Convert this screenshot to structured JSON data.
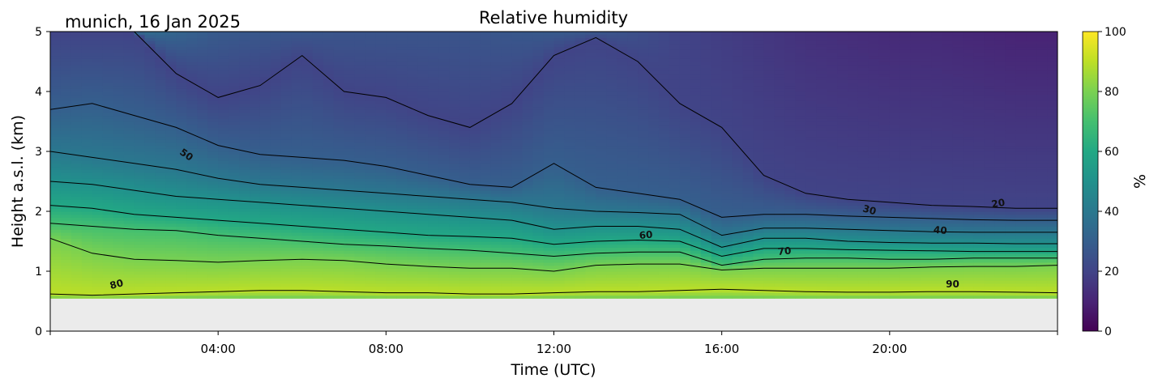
{
  "chart_data": {
    "type": "heatmap",
    "title": "Relative humidity",
    "site_label": "munich, 16 Jan 2025",
    "xlabel": "Time (UTC)",
    "ylabel": "Height a.s.l. (km)",
    "x_ticks": [
      "04:00",
      "08:00",
      "12:00",
      "16:00",
      "20:00"
    ],
    "x_tick_hours": [
      4,
      8,
      12,
      16,
      20
    ],
    "xlim_hours": [
      0,
      24
    ],
    "y_ticks": [
      "0",
      "1",
      "2",
      "3",
      "4",
      "5"
    ],
    "ylim_km": [
      0,
      5
    ],
    "data_bottom_km": 0.55,
    "colorbar": {
      "label": "%",
      "ticks": [
        "0",
        "20",
        "40",
        "60",
        "80",
        "100"
      ],
      "range": [
        0,
        100
      ],
      "colormap": "viridis"
    },
    "contour_levels": [
      20,
      30,
      40,
      50,
      60,
      70,
      80,
      90
    ],
    "contour_labels": [
      {
        "text": "50",
        "hour": 3.2,
        "km": 2.9,
        "angle": 35
      },
      {
        "text": "60",
        "hour": 14.2,
        "km": 1.55,
        "angle": -5
      },
      {
        "text": "70",
        "hour": 17.5,
        "km": 1.28,
        "angle": -5
      },
      {
        "text": "80",
        "hour": 1.6,
        "km": 0.73,
        "angle": -15
      },
      {
        "text": "30",
        "hour": 19.5,
        "km": 1.97,
        "angle": 15
      },
      {
        "text": "40",
        "hour": 21.2,
        "km": 1.63,
        "angle": 5
      },
      {
        "text": "20",
        "hour": 22.6,
        "km": 2.08,
        "angle": -10
      },
      {
        "text": "90",
        "hour": 21.5,
        "km": 0.73,
        "angle": 0
      }
    ],
    "level_heights_km": {
      "hours": [
        0,
        1,
        2,
        3,
        4,
        5,
        6,
        7,
        8,
        9,
        10,
        11,
        12,
        13,
        14,
        15,
        16,
        17,
        18,
        19,
        20,
        21,
        22,
        23,
        24
      ],
      "rh90": [
        0.62,
        0.6,
        0.62,
        0.64,
        0.66,
        0.68,
        0.68,
        0.66,
        0.64,
        0.64,
        0.62,
        0.62,
        0.64,
        0.66,
        0.66,
        0.68,
        0.7,
        0.68,
        0.66,
        0.65,
        0.65,
        0.66,
        0.66,
        0.65,
        0.64
      ],
      "rh80": [
        1.55,
        1.3,
        1.2,
        1.18,
        1.15,
        1.18,
        1.2,
        1.18,
        1.12,
        1.08,
        1.05,
        1.05,
        1.0,
        1.1,
        1.12,
        1.12,
        1.02,
        1.05,
        1.05,
        1.05,
        1.05,
        1.07,
        1.08,
        1.08,
        1.1
      ],
      "rh70": [
        1.8,
        1.75,
        1.7,
        1.68,
        1.6,
        1.55,
        1.5,
        1.45,
        1.42,
        1.38,
        1.35,
        1.3,
        1.25,
        1.3,
        1.32,
        1.32,
        1.1,
        1.2,
        1.22,
        1.22,
        1.2,
        1.2,
        1.22,
        1.22,
        1.22
      ],
      "rh60": [
        2.1,
        2.05,
        1.95,
        1.9,
        1.85,
        1.8,
        1.75,
        1.7,
        1.65,
        1.6,
        1.58,
        1.55,
        1.45,
        1.5,
        1.52,
        1.5,
        1.25,
        1.38,
        1.38,
        1.36,
        1.35,
        1.34,
        1.33,
        1.33,
        1.33
      ],
      "rh50": [
        2.5,
        2.45,
        2.35,
        2.25,
        2.2,
        2.15,
        2.1,
        2.05,
        2.0,
        1.95,
        1.9,
        1.85,
        1.7,
        1.75,
        1.75,
        1.7,
        1.4,
        1.55,
        1.55,
        1.5,
        1.48,
        1.47,
        1.47,
        1.46,
        1.46
      ],
      "rh40": [
        3.0,
        2.9,
        2.8,
        2.7,
        2.55,
        2.45,
        2.4,
        2.35,
        2.3,
        2.25,
        2.2,
        2.15,
        2.05,
        2.0,
        1.98,
        1.95,
        1.6,
        1.72,
        1.72,
        1.7,
        1.68,
        1.66,
        1.65,
        1.65,
        1.65
      ],
      "rh30": [
        3.7,
        3.8,
        3.6,
        3.4,
        3.1,
        2.95,
        2.9,
        2.85,
        2.75,
        2.6,
        2.45,
        2.4,
        2.8,
        2.4,
        2.3,
        2.2,
        1.9,
        1.95,
        1.95,
        1.92,
        1.9,
        1.88,
        1.86,
        1.85,
        1.85
      ],
      "rh20": [
        5,
        5,
        5,
        4.3,
        3.9,
        4.1,
        4.6,
        4.0,
        3.9,
        3.6,
        3.4,
        3.8,
        4.6,
        4.9,
        4.5,
        3.8,
        3.4,
        2.6,
        2.3,
        2.2,
        2.15,
        2.1,
        2.08,
        2.05,
        2.05
      ]
    },
    "rh_at_top_percent": [
      42,
      40,
      36,
      32,
      28,
      27,
      27,
      26,
      26,
      26,
      26,
      27,
      28,
      27,
      24,
      20,
      18,
      16,
      14,
      13,
      12,
      12,
      11,
      10,
      10
    ]
  }
}
